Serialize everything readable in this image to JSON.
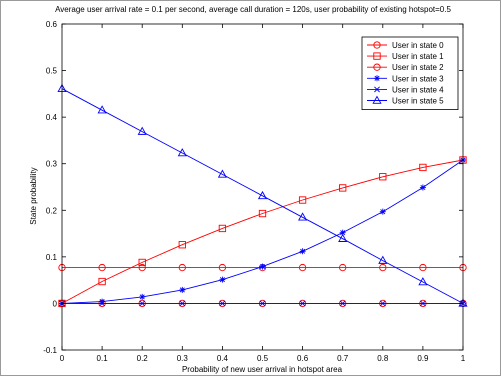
{
  "chart_data": {
    "type": "line",
    "title": "Average user arrival rate = 0.1 per second, average call duration = 120s, user probability of existing hotspot=0.5",
    "xlabel": "Probability of new user arrival in hotspot area",
    "ylabel": "State probability",
    "xlim": [
      0,
      1
    ],
    "ylim": [
      -0.1,
      0.6
    ],
    "x_ticks": [
      0,
      0.1,
      0.2,
      0.3,
      0.4,
      0.5,
      0.6,
      0.7,
      0.8,
      0.9,
      1
    ],
    "y_ticks": [
      -0.1,
      0,
      0.1,
      0.2,
      0.3,
      0.4,
      0.5,
      0.6
    ],
    "x_tick_labels": [
      "0",
      "0.1",
      "0.2",
      "0.3",
      "0.4",
      "0.5",
      "0.6",
      "0.7",
      "0.8",
      "0.9",
      "1"
    ],
    "y_tick_labels": [
      "-0.1",
      "0",
      "0.1",
      "0.2",
      "0.3",
      "0.4",
      "0.5",
      "0.6"
    ],
    "grid": false,
    "legend_position": "top-right",
    "x": [
      0,
      0.1,
      0.2,
      0.3,
      0.4,
      0.5,
      0.6,
      0.7,
      0.8,
      0.9,
      1
    ],
    "series": [
      {
        "name": "User in state 0",
        "color": "#ff0000",
        "marker": "circle",
        "values": [
          0.0,
          0.0,
          0.0,
          0.0,
          0.0,
          0.0,
          0.0,
          0.0,
          0.0,
          0.0,
          0.0
        ]
      },
      {
        "name": "User in state 1",
        "color": "#ff0000",
        "marker": "square",
        "values": [
          0.0,
          0.047,
          0.088,
          0.126,
          0.161,
          0.193,
          0.222,
          0.248,
          0.272,
          0.292,
          0.308
        ]
      },
      {
        "name": "User in state 2",
        "color": "#ff0000",
        "marker": "circle",
        "values": [
          0.077,
          0.077,
          0.077,
          0.077,
          0.077,
          0.077,
          0.077,
          0.077,
          0.077,
          0.077,
          0.077
        ]
      },
      {
        "name": "User in state 3",
        "color": "#0000ff",
        "marker": "star",
        "values": [
          0.0,
          0.004,
          0.014,
          0.029,
          0.051,
          0.079,
          0.112,
          0.152,
          0.197,
          0.249,
          0.308
        ]
      },
      {
        "name": "User in state 4",
        "color": "#0000ff",
        "marker": "x",
        "values": [
          0.0,
          0.0,
          0.0,
          0.0,
          0.0,
          0.0,
          0.0,
          0.0,
          0.0,
          0.0,
          0.0
        ]
      },
      {
        "name": "User in state 5",
        "color": "#0000ff",
        "marker": "triangle",
        "values": [
          0.461,
          0.415,
          0.369,
          0.323,
          0.277,
          0.231,
          0.185,
          0.139,
          0.092,
          0.046,
          0.0
        ]
      }
    ]
  }
}
